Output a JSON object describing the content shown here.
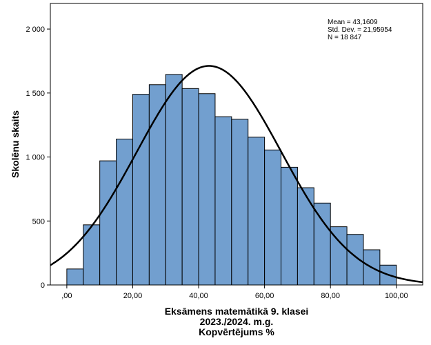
{
  "chart_data": {
    "type": "bar",
    "subtype": "histogram",
    "xlabel_lines": [
      "Eksāmens matemātikā 9. klasei",
      "2023./2024. m.g.",
      "Kopvērtējums %"
    ],
    "ylabel": "Skolēnu skaits",
    "xlim": [
      -5,
      108
    ],
    "ylim": [
      0,
      2200
    ],
    "x_ticks": [
      {
        "value": 0,
        "label": ",00"
      },
      {
        "value": 20,
        "label": "20,00"
      },
      {
        "value": 40,
        "label": "40,00"
      },
      {
        "value": 60,
        "label": "60,00"
      },
      {
        "value": 80,
        "label": "80,00"
      },
      {
        "value": 100,
        "label": "100,00"
      }
    ],
    "y_ticks": [
      {
        "value": 0,
        "label": "0"
      },
      {
        "value": 500,
        "label": "500"
      },
      {
        "value": 1000,
        "label": "1 000"
      },
      {
        "value": 1500,
        "label": "1 500"
      },
      {
        "value": 2000,
        "label": "2 000"
      }
    ],
    "bin_width": 5,
    "bins": [
      {
        "start": 0,
        "end": 5,
        "count": 125
      },
      {
        "start": 5,
        "end": 10,
        "count": 470
      },
      {
        "start": 10,
        "end": 15,
        "count": 970
      },
      {
        "start": 15,
        "end": 20,
        "count": 1140
      },
      {
        "start": 20,
        "end": 25,
        "count": 1490
      },
      {
        "start": 25,
        "end": 30,
        "count": 1565
      },
      {
        "start": 30,
        "end": 35,
        "count": 1645
      },
      {
        "start": 35,
        "end": 40,
        "count": 1535
      },
      {
        "start": 40,
        "end": 45,
        "count": 1495
      },
      {
        "start": 45,
        "end": 50,
        "count": 1315
      },
      {
        "start": 50,
        "end": 55,
        "count": 1295
      },
      {
        "start": 55,
        "end": 60,
        "count": 1155
      },
      {
        "start": 60,
        "end": 65,
        "count": 1055
      },
      {
        "start": 65,
        "end": 70,
        "count": 920
      },
      {
        "start": 70,
        "end": 75,
        "count": 760
      },
      {
        "start": 75,
        "end": 80,
        "count": 640
      },
      {
        "start": 80,
        "end": 85,
        "count": 455
      },
      {
        "start": 85,
        "end": 90,
        "count": 395
      },
      {
        "start": 90,
        "end": 95,
        "count": 275
      },
      {
        "start": 95,
        "end": 100,
        "count": 155
      }
    ],
    "normal_curve": {
      "mean": 43.1609,
      "std": 21.95954,
      "n": 18847
    },
    "stats_lines": [
      "Mean = 43,1609",
      "Std. Dev. = 21,95954",
      "N = 18 847"
    ],
    "bar_fill": "#729fcf",
    "bar_stroke": "#000000",
    "curve_color": "#000000",
    "grid": false
  }
}
